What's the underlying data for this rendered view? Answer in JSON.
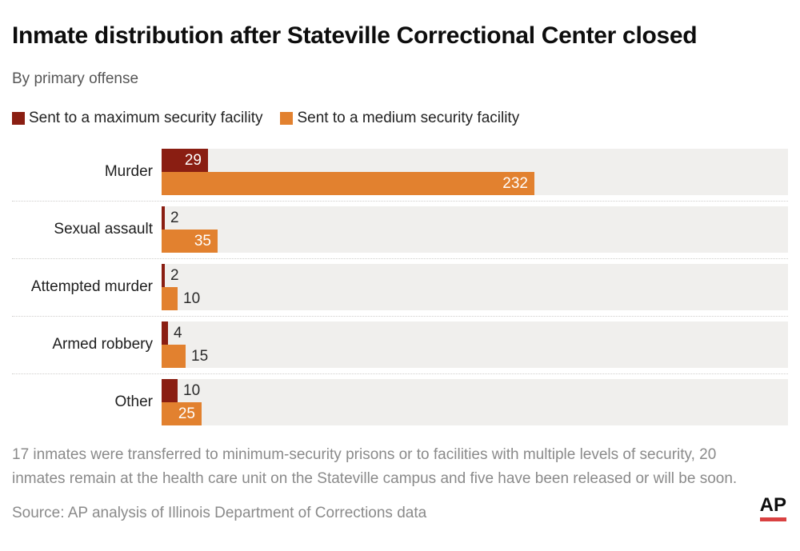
{
  "chart_data": {
    "type": "bar",
    "orientation": "horizontal",
    "title": "Inmate distribution after Stateville Correctional Center closed",
    "subtitle": "By primary offense",
    "categories": [
      "Murder",
      "Sexual assault",
      "Attempted murder",
      "Armed robbery",
      "Other"
    ],
    "series": [
      {
        "name": "Sent to a maximum security facility",
        "color": "#8a1e12",
        "values": [
          29,
          2,
          2,
          4,
          10
        ]
      },
      {
        "name": "Sent to a medium security facility",
        "color": "#e2812f",
        "values": [
          232,
          35,
          10,
          15,
          25
        ]
      }
    ],
    "xlim": [
      0,
      390
    ],
    "grid": false,
    "legend_position": "top",
    "track_color": "#f0efed",
    "value_labels": true
  },
  "footnote": "17 inmates were transferred to minimum-security prisons or to facilities with multiple levels of security, 20 inmates remain at the health care unit on the Stateville campus and five have been released or will be soon.",
  "source": "Source: AP analysis of Illinois Department of Corrections data",
  "logo": {
    "text": "AP",
    "underline_color": "#d94141"
  }
}
